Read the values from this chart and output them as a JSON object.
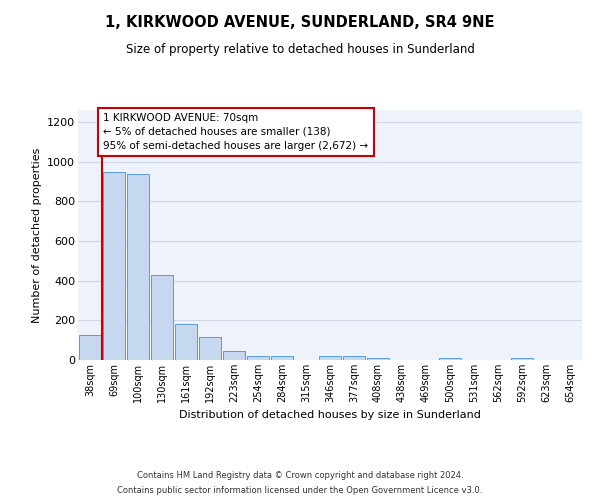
{
  "title": "1, KIRKWOOD AVENUE, SUNDERLAND, SR4 9NE",
  "subtitle": "Size of property relative to detached houses in Sunderland",
  "xlabel": "Distribution of detached houses by size in Sunderland",
  "ylabel": "Number of detached properties",
  "footer_line1": "Contains HM Land Registry data © Crown copyright and database right 2024.",
  "footer_line2": "Contains public sector information licensed under the Open Government Licence v3.0.",
  "bar_labels": [
    "38sqm",
    "69sqm",
    "100sqm",
    "130sqm",
    "161sqm",
    "192sqm",
    "223sqm",
    "254sqm",
    "284sqm",
    "315sqm",
    "346sqm",
    "377sqm",
    "408sqm",
    "438sqm",
    "469sqm",
    "500sqm",
    "531sqm",
    "562sqm",
    "592sqm",
    "623sqm",
    "654sqm"
  ],
  "bar_values": [
    125,
    950,
    935,
    430,
    182,
    115,
    45,
    22,
    20,
    0,
    18,
    18,
    10,
    0,
    0,
    10,
    0,
    0,
    10,
    0,
    0
  ],
  "bar_color": "#c5d8f0",
  "bar_edge_color": "#5b9bd5",
  "ylim": [
    0,
    1260
  ],
  "yticks": [
    0,
    200,
    400,
    600,
    800,
    1000,
    1200
  ],
  "property_line_color": "#cc0000",
  "annotation_text": "1 KIRKWOOD AVENUE: 70sqm\n← 5% of detached houses are smaller (138)\n95% of semi-detached houses are larger (2,672) →",
  "annotation_box_color": "#cc0000",
  "grid_color": "#d0d8e8",
  "bg_color": "#eef2fb"
}
